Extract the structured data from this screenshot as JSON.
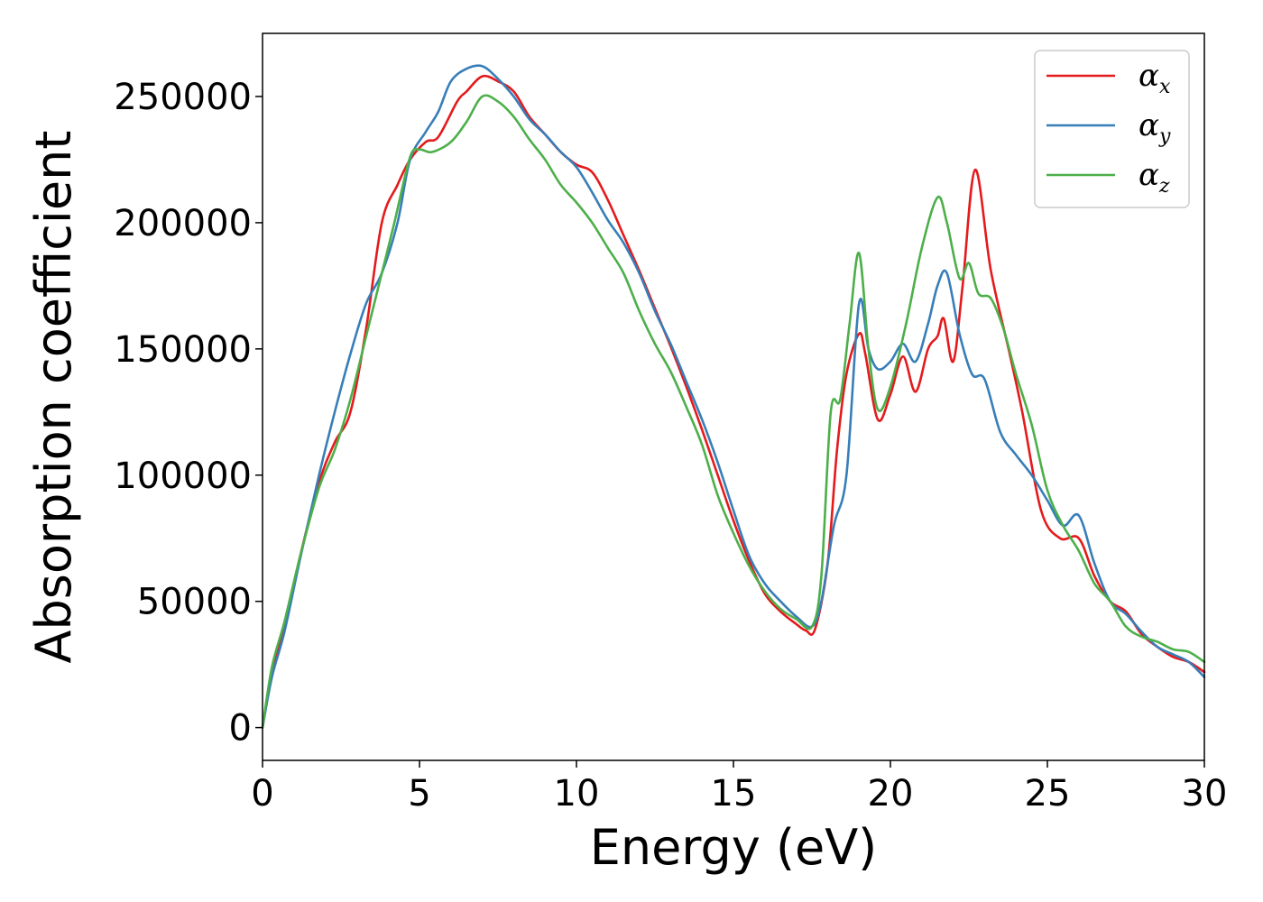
{
  "chart_data": {
    "type": "line",
    "title": "",
    "xlabel": "Energy (eV)",
    "ylabel": "Absorption coefficient",
    "xlim": [
      0,
      30
    ],
    "ylim": [
      -13000,
      275000
    ],
    "xticks": [
      "0",
      "5",
      "10",
      "15",
      "20",
      "25",
      "30"
    ],
    "yticks": [
      "0",
      "50000",
      "100000",
      "150000",
      "200000",
      "250000"
    ],
    "grid": false,
    "legend_position": "top-right",
    "series": [
      {
        "name": "α",
        "subscript": "x",
        "color": "#e41a1c",
        "x": [
          0,
          0.3,
          0.7,
          1.2,
          1.8,
          2.3,
          2.8,
          3.3,
          3.8,
          4.3,
          4.7,
          5.2,
          5.6,
          6.2,
          6.5,
          7.0,
          7.5,
          8.0,
          8.5,
          9.0,
          9.5,
          10.0,
          10.5,
          11.0,
          11.5,
          12.0,
          12.5,
          13.0,
          13.5,
          14.0,
          14.5,
          15.0,
          15.5,
          16.0,
          16.5,
          17.0,
          17.3,
          17.6,
          18.0,
          18.3,
          18.6,
          19.0,
          19.2,
          19.6,
          20.0,
          20.4,
          20.8,
          21.2,
          21.5,
          21.7,
          22.0,
          22.3,
          22.7,
          23.2,
          23.8,
          24.2,
          24.8,
          25.4,
          26.0,
          26.5,
          27.0,
          27.5,
          28.0,
          28.5,
          29.0,
          29.5,
          30.0
        ],
        "values": [
          0,
          22000,
          40000,
          68000,
          97000,
          113000,
          125000,
          158000,
          200000,
          215000,
          225000,
          232000,
          234000,
          248000,
          252000,
          258000,
          256000,
          252000,
          242000,
          235000,
          228000,
          223000,
          220000,
          209000,
          195000,
          181000,
          166000,
          151000,
          135000,
          118000,
          100000,
          82000,
          66000,
          53000,
          46000,
          41000,
          38500,
          39000,
          65000,
          110000,
          140000,
          156000,
          148000,
          122000,
          132000,
          147000,
          133000,
          150000,
          155000,
          162000,
          145000,
          175000,
          221000,
          181000,
          148000,
          125000,
          86000,
          75000,
          75000,
          60000,
          50000,
          46000,
          37000,
          32000,
          28000,
          26000,
          22000
        ]
      },
      {
        "name": "α",
        "subscript": "y",
        "color": "#377eb8",
        "x": [
          0,
          0.3,
          0.7,
          1.2,
          1.8,
          2.3,
          2.8,
          3.3,
          3.8,
          4.3,
          4.7,
          5.2,
          5.6,
          6.0,
          6.5,
          7.0,
          7.5,
          8.0,
          8.5,
          9.0,
          9.5,
          10.0,
          10.5,
          11.0,
          11.5,
          12.0,
          12.5,
          13.0,
          13.5,
          14.0,
          14.5,
          15.0,
          15.5,
          16.0,
          16.5,
          17.0,
          17.5,
          17.8,
          18.2,
          18.6,
          19.0,
          19.3,
          19.6,
          20.0,
          20.4,
          20.8,
          21.2,
          21.5,
          21.8,
          22.2,
          22.6,
          23.0,
          23.5,
          24.0,
          24.5,
          25.0,
          25.5,
          26.0,
          26.5,
          27.0,
          27.5,
          28.0,
          28.5,
          29.0,
          29.5,
          30.0
        ],
        "values": [
          0,
          20000,
          38000,
          67000,
          100000,
          125000,
          148000,
          168000,
          180000,
          200000,
          225000,
          236000,
          244000,
          256000,
          261000,
          262000,
          257000,
          250000,
          241000,
          235000,
          228000,
          222000,
          212000,
          201000,
          192000,
          180000,
          165000,
          152000,
          137000,
          122000,
          105000,
          86000,
          68000,
          57000,
          50000,
          44000,
          40000,
          50000,
          80000,
          100000,
          168000,
          150000,
          142000,
          145000,
          152000,
          145000,
          160000,
          175000,
          180000,
          156000,
          140000,
          138000,
          117000,
          108000,
          100000,
          90000,
          80000,
          84000,
          65000,
          50000,
          45000,
          38000,
          32000,
          29000,
          26000,
          20000
        ]
      },
      {
        "name": "α",
        "subscript": "z",
        "color": "#4daf4a",
        "x": [
          0,
          0.3,
          0.7,
          1.2,
          1.8,
          2.3,
          2.8,
          3.3,
          3.8,
          4.2,
          4.7,
          5.0,
          5.4,
          6.0,
          6.5,
          7.0,
          7.5,
          8.0,
          8.5,
          9.0,
          9.5,
          10.0,
          10.5,
          11.0,
          11.5,
          12.0,
          12.5,
          13.0,
          13.5,
          14.0,
          14.5,
          15.0,
          15.5,
          16.0,
          16.5,
          17.0,
          17.5,
          17.8,
          18.1,
          18.4,
          18.7,
          19.0,
          19.3,
          19.6,
          20.0,
          20.5,
          21.0,
          21.5,
          21.8,
          22.2,
          22.5,
          22.8,
          23.2,
          23.6,
          24.0,
          24.5,
          25.0,
          25.5,
          26.0,
          26.5,
          27.0,
          27.5,
          28.0,
          28.5,
          29.0,
          29.5,
          30.0
        ],
        "values": [
          0,
          24000,
          42000,
          68000,
          95000,
          110000,
          130000,
          155000,
          180000,
          200000,
          226000,
          229000,
          228000,
          232000,
          240000,
          250000,
          248000,
          242000,
          233000,
          225000,
          215000,
          208000,
          200000,
          190000,
          180000,
          165000,
          152000,
          141000,
          127000,
          112000,
          92000,
          77000,
          64000,
          54000,
          47000,
          43000,
          40000,
          60000,
          125000,
          130000,
          160000,
          188000,
          150000,
          126000,
          135000,
          160000,
          190000,
          210000,
          200000,
          178000,
          184000,
          172000,
          170000,
          158000,
          140000,
          120000,
          94000,
          80000,
          70000,
          57000,
          50000,
          40000,
          36000,
          34000,
          31000,
          30000,
          26000
        ]
      }
    ]
  }
}
